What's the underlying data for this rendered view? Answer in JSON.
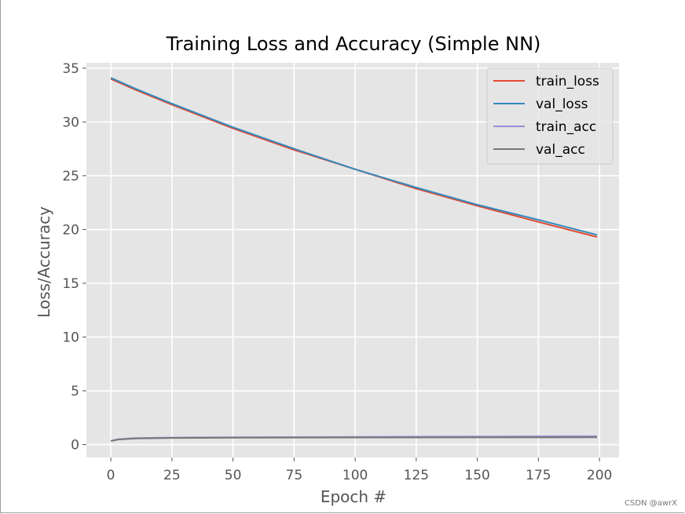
{
  "chart_data": {
    "type": "line",
    "title": "Training Loss and Accuracy (Simple NN)",
    "xlabel": "Epoch #",
    "ylabel": "Loss/Accuracy",
    "xlim": [
      -10,
      208
    ],
    "ylim": [
      -1.2,
      35.5
    ],
    "xticks": [
      0,
      25,
      50,
      75,
      100,
      125,
      150,
      175,
      200
    ],
    "yticks": [
      0,
      5,
      10,
      15,
      20,
      25,
      30,
      35
    ],
    "grid": true,
    "legend_position": "top-right",
    "series": [
      {
        "name": "train_loss",
        "color": "#e24a33",
        "x": [
          0,
          10,
          25,
          50,
          75,
          100,
          125,
          150,
          175,
          199
        ],
        "y": [
          34.0,
          33.0,
          31.6,
          29.4,
          27.4,
          25.6,
          23.8,
          22.2,
          20.7,
          19.3
        ]
      },
      {
        "name": "val_loss",
        "color": "#348abd",
        "x": [
          0,
          10,
          25,
          50,
          75,
          100,
          125,
          150,
          175,
          199
        ],
        "y": [
          34.1,
          33.1,
          31.7,
          29.5,
          27.5,
          25.6,
          23.9,
          22.3,
          20.9,
          19.5
        ]
      },
      {
        "name": "train_acc",
        "color": "#988ed5",
        "x": [
          0,
          3,
          10,
          25,
          50,
          75,
          100,
          125,
          150,
          175,
          199
        ],
        "y": [
          0.35,
          0.5,
          0.6,
          0.65,
          0.68,
          0.7,
          0.72,
          0.74,
          0.75,
          0.77,
          0.78
        ]
      },
      {
        "name": "val_acc",
        "color": "#777777",
        "x": [
          0,
          3,
          10,
          25,
          50,
          75,
          100,
          125,
          150,
          175,
          199
        ],
        "y": [
          0.33,
          0.47,
          0.57,
          0.62,
          0.64,
          0.65,
          0.66,
          0.66,
          0.67,
          0.67,
          0.68
        ]
      }
    ]
  },
  "watermark": "CSDN @awrX"
}
